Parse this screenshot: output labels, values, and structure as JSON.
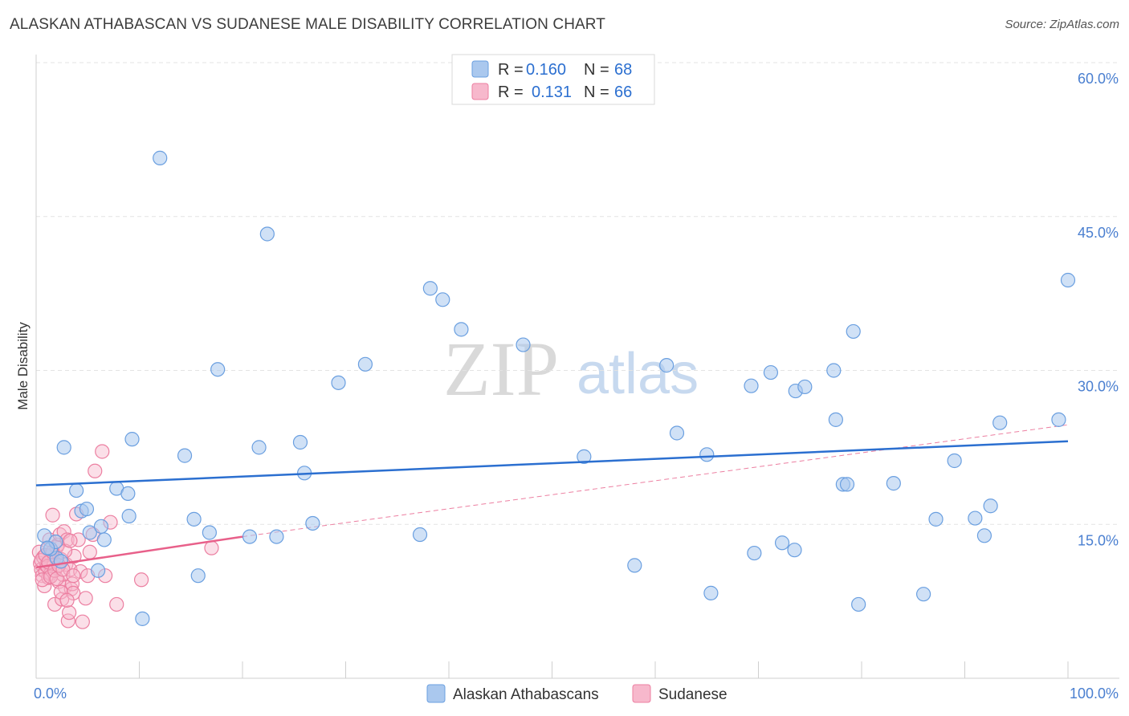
{
  "title": "ALASKAN ATHABASCAN VS SUDANESE MALE DISABILITY CORRELATION CHART",
  "source": "Source: ZipAtlas.com",
  "watermark": {
    "zip": "ZIP",
    "atlas": "atlas"
  },
  "colors": {
    "blue_fill": "#aac8ee",
    "blue_stroke": "#6a9fe0",
    "blue_line": "#2b6fd0",
    "pink_fill": "#f7b8cc",
    "pink_stroke": "#ec7fa1",
    "pink_line": "#e8608a",
    "tick_text": "#4a7fd0",
    "grid": "#e3e3e3"
  },
  "legend": {
    "rows": [
      {
        "r_label": "R =",
        "r_value": "0.160",
        "n_label": "N =",
        "n_value": "68"
      },
      {
        "r_label": "R =",
        "r_value": "0.131",
        "n_label": "N =",
        "n_value": "66"
      }
    ]
  },
  "bottom_legend": [
    "Alaskan Athabascans",
    "Sudanese"
  ],
  "chart_data": {
    "type": "scatter",
    "xlabel": "",
    "ylabel": "Male Disability",
    "xlim": [
      0,
      100
    ],
    "ylim": [
      0,
      60
    ],
    "x_tick_labels": [
      "0.0%",
      "100.0%"
    ],
    "y_ticks": [
      15,
      30,
      45,
      60
    ],
    "y_tick_labels": [
      "15.0%",
      "30.0%",
      "45.0%",
      "60.0%"
    ],
    "grid": true,
    "series": [
      {
        "name": "Alaskan Athabascans",
        "r": 0.16,
        "n": 68,
        "trend": {
          "x": [
            0,
            100
          ],
          "y": [
            18.8,
            23.1
          ]
        },
        "points": [
          [
            0.8,
            13.9
          ],
          [
            2.0,
            11.7
          ],
          [
            1.4,
            12.6
          ],
          [
            2.7,
            22.5
          ],
          [
            3.9,
            18.3
          ],
          [
            4.4,
            16.3
          ],
          [
            4.9,
            16.5
          ],
          [
            5.2,
            14.2
          ],
          [
            6.0,
            10.5
          ],
          [
            6.3,
            14.8
          ],
          [
            6.6,
            13.5
          ],
          [
            7.8,
            18.5
          ],
          [
            8.9,
            18.0
          ],
          [
            9.0,
            15.8
          ],
          [
            9.3,
            23.3
          ],
          [
            10.3,
            5.8
          ],
          [
            12.0,
            50.7
          ],
          [
            14.4,
            21.7
          ],
          [
            15.3,
            15.5
          ],
          [
            15.7,
            10.0
          ],
          [
            16.8,
            14.2
          ],
          [
            17.6,
            30.1
          ],
          [
            20.7,
            13.8
          ],
          [
            21.6,
            22.5
          ],
          [
            22.4,
            43.3
          ],
          [
            23.3,
            13.8
          ],
          [
            25.6,
            23.0
          ],
          [
            26.0,
            20.0
          ],
          [
            26.8,
            15.1
          ],
          [
            29.3,
            28.8
          ],
          [
            31.9,
            30.6
          ],
          [
            37.2,
            14.0
          ],
          [
            38.2,
            38.0
          ],
          [
            39.4,
            36.9
          ],
          [
            41.2,
            34.0
          ],
          [
            47.2,
            32.5
          ],
          [
            53.1,
            21.6
          ],
          [
            58.0,
            11.0
          ],
          [
            61.1,
            30.5
          ],
          [
            62.1,
            23.9
          ],
          [
            65.0,
            21.8
          ],
          [
            65.4,
            8.3
          ],
          [
            69.3,
            28.5
          ],
          [
            69.6,
            12.2
          ],
          [
            71.2,
            29.8
          ],
          [
            72.3,
            13.2
          ],
          [
            73.5,
            12.5
          ],
          [
            73.6,
            28.0
          ],
          [
            74.5,
            28.4
          ],
          [
            77.3,
            30.0
          ],
          [
            77.5,
            25.2
          ],
          [
            78.2,
            18.9
          ],
          [
            78.6,
            18.9
          ],
          [
            79.2,
            33.8
          ],
          [
            79.7,
            7.2
          ],
          [
            83.1,
            19.0
          ],
          [
            86.0,
            8.2
          ],
          [
            87.2,
            15.5
          ],
          [
            89.0,
            21.2
          ],
          [
            91.0,
            15.6
          ],
          [
            91.9,
            13.9
          ],
          [
            92.5,
            16.8
          ],
          [
            93.4,
            24.9
          ],
          [
            100.0,
            38.8
          ],
          [
            99.1,
            25.2
          ],
          [
            1.9,
            13.3
          ],
          [
            2.4,
            11.4
          ],
          [
            1.1,
            12.7
          ]
        ]
      },
      {
        "name": "Sudanese",
        "r": 0.131,
        "n": 66,
        "trend_solid": {
          "x": [
            0,
            20
          ],
          "y": [
            10.8,
            13.8
          ]
        },
        "trend_dashed": {
          "x": [
            20,
            100
          ],
          "y": [
            13.8,
            24.7
          ]
        },
        "points": [
          [
            0.3,
            12.3
          ],
          [
            0.4,
            11.2
          ],
          [
            0.5,
            10.6
          ],
          [
            0.6,
            10.0
          ],
          [
            0.7,
            11.8
          ],
          [
            0.8,
            9.0
          ],
          [
            0.9,
            10.4
          ],
          [
            1.0,
            11.0
          ],
          [
            1.1,
            12.6
          ],
          [
            1.2,
            9.8
          ],
          [
            1.3,
            13.5
          ],
          [
            1.4,
            10.2
          ],
          [
            1.5,
            12.0
          ],
          [
            1.6,
            15.9
          ],
          [
            1.7,
            11.4
          ],
          [
            1.8,
            7.2
          ],
          [
            1.9,
            10.8
          ],
          [
            2.0,
            12.8
          ],
          [
            2.1,
            13.0
          ],
          [
            2.2,
            9.4
          ],
          [
            2.3,
            14.0
          ],
          [
            2.4,
            11.6
          ],
          [
            2.5,
            7.7
          ],
          [
            2.6,
            10.1
          ],
          [
            2.7,
            14.3
          ],
          [
            2.8,
            8.9
          ],
          [
            2.9,
            11.1
          ],
          [
            3.0,
            13.5
          ],
          [
            3.1,
            5.6
          ],
          [
            3.2,
            6.4
          ],
          [
            3.3,
            10.6
          ],
          [
            3.4,
            8.7
          ],
          [
            3.5,
            9.2
          ],
          [
            3.6,
            8.3
          ],
          [
            3.7,
            11.9
          ],
          [
            3.9,
            16.0
          ],
          [
            4.1,
            13.5
          ],
          [
            4.3,
            10.4
          ],
          [
            4.5,
            5.5
          ],
          [
            4.8,
            7.8
          ],
          [
            5.0,
            10.0
          ],
          [
            5.2,
            12.3
          ],
          [
            5.5,
            14.0
          ],
          [
            5.7,
            20.2
          ],
          [
            6.4,
            22.1
          ],
          [
            6.7,
            10.0
          ],
          [
            7.2,
            15.2
          ],
          [
            7.8,
            7.2
          ],
          [
            10.2,
            9.6
          ],
          [
            17.0,
            12.7
          ],
          [
            0.5,
            11.5
          ],
          [
            0.6,
            9.6
          ],
          [
            0.9,
            12.0
          ],
          [
            1.1,
            10.9
          ],
          [
            1.2,
            11.3
          ],
          [
            1.4,
            9.9
          ],
          [
            1.6,
            12.3
          ],
          [
            1.8,
            10.5
          ],
          [
            2.0,
            9.7
          ],
          [
            2.2,
            11.0
          ],
          [
            2.4,
            8.4
          ],
          [
            2.6,
            10.6
          ],
          [
            2.8,
            12.4
          ],
          [
            3.0,
            7.6
          ],
          [
            3.3,
            13.4
          ],
          [
            3.6,
            10.0
          ]
        ]
      }
    ]
  }
}
